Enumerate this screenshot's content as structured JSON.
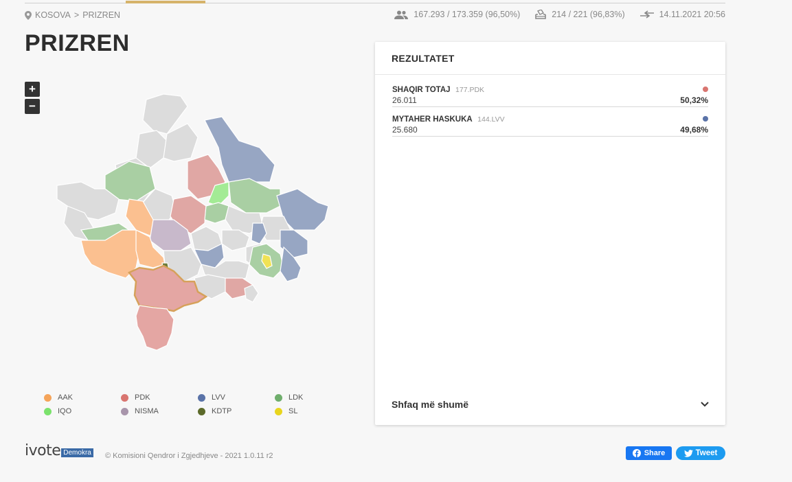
{
  "breadcrumb": {
    "country": "KOSOVA",
    "separator": ">",
    "municipality": "PRIZREN"
  },
  "stats": {
    "voters": "167.293 / 173.359 (96,50%)",
    "stations": "214 / 221 (96,83%)",
    "updated": "14.11.2021 20:56"
  },
  "page_title": "PRIZREN",
  "zoom": {
    "in": "+",
    "out": "−"
  },
  "map": {
    "highlighted_region": "Prizren"
  },
  "legend": [
    {
      "label": "AAK",
      "color": "#f5a45a"
    },
    {
      "label": "PDK",
      "color": "#d97570"
    },
    {
      "label": "LVV",
      "color": "#5a73a8"
    },
    {
      "label": "LDK",
      "color": "#6fae6c"
    },
    {
      "label": "IQO",
      "color": "#7be26c"
    },
    {
      "label": "NISMA",
      "color": "#a895ab"
    },
    {
      "label": "KDTP",
      "color": "#5c6a2a"
    },
    {
      "label": "SL",
      "color": "#e8d51e"
    }
  ],
  "panel": {
    "title": "REZULTATET",
    "results": [
      {
        "name": "SHAQIR TOTAJ",
        "list": "177.PDK",
        "votes": "26.011",
        "pct": "50,32%",
        "color": "#d97570"
      },
      {
        "name": "MYTAHER HASKUKA",
        "list": "144.LVV",
        "votes": "25.680",
        "pct": "49,68%",
        "color": "#5a73a8"
      }
    ],
    "show_more": "Shfaq më shumë"
  },
  "footer": {
    "logo_text": "ivote",
    "logo_badge": "Demokra",
    "copyright": "© Komisioni Qendror i Zgjedhjeve - 2021 1.0.11 r2",
    "share_label": "Share",
    "tweet_label": "Tweet"
  }
}
